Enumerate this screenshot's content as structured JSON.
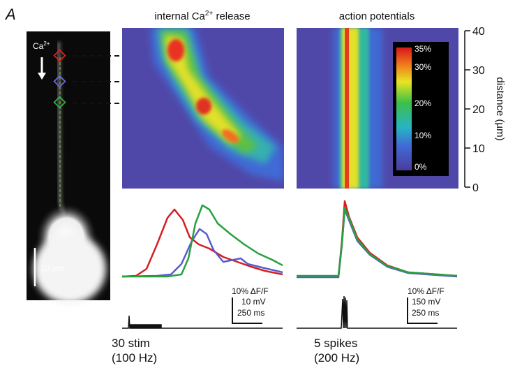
{
  "panel_label": "A",
  "neuron": {
    "ion_label": {
      "base": "Ca",
      "sup": "2+"
    },
    "scale_label": "10 µm"
  },
  "heatmaps": [
    {
      "title": {
        "prefix": "internal Ca",
        "sup": "2+",
        "suffix": " release"
      }
    },
    {
      "title": "action potentials"
    }
  ],
  "distance_axis": {
    "label": "distance (µm)",
    "ticks": [
      0,
      10,
      20,
      30,
      40
    ]
  },
  "colorbar": {
    "labels": [
      "35%",
      "30%",
      "20%",
      "10%",
      "0%"
    ]
  },
  "scale_bars": [
    {
      "lines": [
        "10% ΔF/F",
        "10 mV",
        "250 ms"
      ]
    },
    {
      "lines": [
        "10% ΔF/F",
        "150 mV",
        "250 ms"
      ]
    }
  ],
  "stimuli": [
    {
      "lines": [
        "30 stim",
        "(100 Hz)"
      ]
    },
    {
      "lines": [
        "5 spikes",
        "(200 Hz)"
      ]
    }
  ]
}
